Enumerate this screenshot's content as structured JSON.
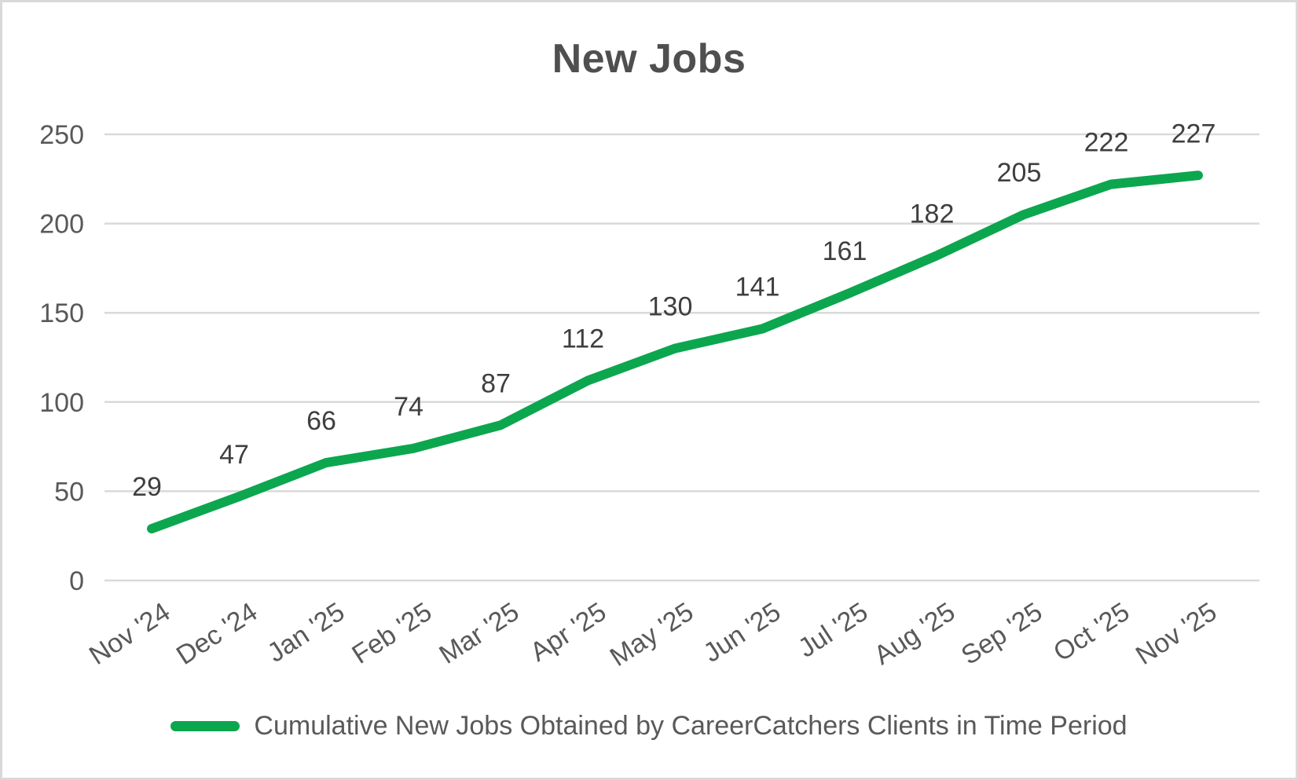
{
  "title": "New Jobs",
  "colors": {
    "series_green": "#0CA64F",
    "gridline": "#d9d9d9",
    "axis_text": "#595959",
    "data_label_text": "#3f3f3f",
    "title_text": "#4f4f4f",
    "border": "#d9d9d9",
    "background": "#ffffff"
  },
  "legend": {
    "label": "Cumulative New Jobs Obtained by CareerCatchers Clients in Time Period",
    "marker": "green-line-swatch",
    "position": "bottom"
  },
  "y_axis": {
    "tick_labels": [
      "0",
      "50",
      "100",
      "150",
      "200",
      "250"
    ],
    "min": 0,
    "max": 250,
    "step": 50
  },
  "chart_data": {
    "type": "line",
    "title": "New Jobs",
    "categories": [
      "Nov '24",
      "Dec '24",
      "Jan '25",
      "Feb '25",
      "Mar '25",
      "Apr '25",
      "May '25",
      "Jun '25",
      "Jul '25",
      "Aug '25",
      "Sep '25",
      "Oct '25",
      "Nov '25"
    ],
    "series": [
      {
        "name": "Cumulative New Jobs Obtained by CareerCatchers Clients in Time Period",
        "values": [
          29,
          47,
          66,
          74,
          87,
          112,
          130,
          141,
          161,
          182,
          205,
          222,
          227
        ],
        "color": "#0CA64F"
      }
    ],
    "xlabel": "",
    "ylabel": "",
    "ylim": [
      0,
      250
    ],
    "y_tick_step": 50,
    "grid": "horizontal",
    "data_labels": true,
    "legend_position": "bottom"
  }
}
